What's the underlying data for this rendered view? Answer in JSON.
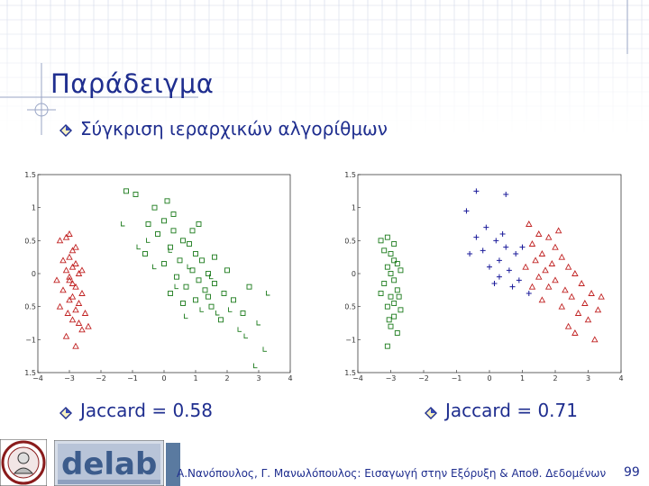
{
  "slide": {
    "title": "Παράδειγμα",
    "bullet1": "Σύγκριση ιεραρχικών αλγορίθμων",
    "jaccard_left": "Jaccard = 0.58",
    "jaccard_right": "Jaccard = 0.71",
    "footer": "Α.Νανόπουλος, Γ. Μανωλόπουλος: Εισαγωγή στην Εξόρυξη & Αποθ. Δεδομένων",
    "page_number": "99"
  },
  "colors": {
    "accent": "#1f2e8f",
    "red": "#c02020",
    "green": "#1a7a1a",
    "blue": "#1a1a9a",
    "grid": "#cfd6e6"
  },
  "logos": {
    "left": "university-seal-icon",
    "right": "delab-logo-icon"
  },
  "chart_data": [
    {
      "type": "scatter",
      "xlim": [
        -4,
        4
      ],
      "ylim": [
        -1.5,
        1.5
      ],
      "xticks": [
        "−4",
        "−3",
        "−2",
        "−1",
        "0",
        "1",
        "2",
        "3",
        "4"
      ],
      "yticks": [
        "1.5",
        "1",
        "0.5",
        "0",
        "−0.5",
        "−1",
        "−1.5"
      ],
      "series": [
        {
          "marker": "triangle",
          "color": "#c02020",
          "points": [
            [
              -3.3,
              0.5
            ],
            [
              -3.1,
              0.55
            ],
            [
              -3.0,
              0.6
            ],
            [
              -2.9,
              0.35
            ],
            [
              -3.2,
              0.2
            ],
            [
              -3.0,
              0.25
            ],
            [
              -2.8,
              0.15
            ],
            [
              -2.9,
              0.1
            ],
            [
              -3.1,
              0.05
            ],
            [
              -2.7,
              0.0
            ],
            [
              -3.0,
              -0.05
            ],
            [
              -2.9,
              -0.15
            ],
            [
              -2.8,
              -0.2
            ],
            [
              -3.2,
              -0.25
            ],
            [
              -2.6,
              -0.3
            ],
            [
              -2.9,
              -0.35
            ],
            [
              -3.0,
              -0.4
            ],
            [
              -2.7,
              -0.45
            ],
            [
              -2.8,
              -0.55
            ],
            [
              -2.5,
              -0.6
            ],
            [
              -2.9,
              -0.7
            ],
            [
              -2.7,
              -0.75
            ],
            [
              -2.6,
              -0.85
            ],
            [
              -3.1,
              -0.95
            ],
            [
              -2.8,
              -1.1
            ],
            [
              -3.0,
              -0.1
            ],
            [
              -3.4,
              -0.1
            ],
            [
              -2.4,
              -0.8
            ],
            [
              -2.8,
              0.4
            ],
            [
              -3.3,
              -0.5
            ],
            [
              -2.6,
              0.05
            ],
            [
              -3.05,
              -0.6
            ]
          ]
        },
        {
          "marker": "square",
          "color": "#1a7a1a",
          "points": [
            [
              -1.2,
              1.25
            ],
            [
              -0.9,
              1.2
            ],
            [
              -0.3,
              1.0
            ],
            [
              -0.5,
              0.75
            ],
            [
              0.0,
              0.8
            ],
            [
              -0.2,
              0.6
            ],
            [
              0.3,
              0.65
            ],
            [
              0.6,
              0.5
            ],
            [
              0.2,
              0.4
            ],
            [
              0.8,
              0.45
            ],
            [
              1.0,
              0.3
            ],
            [
              0.5,
              0.2
            ],
            [
              1.2,
              0.2
            ],
            [
              0.0,
              0.15
            ],
            [
              0.9,
              0.05
            ],
            [
              1.4,
              0.0
            ],
            [
              0.4,
              -0.05
            ],
            [
              1.1,
              -0.1
            ],
            [
              1.6,
              -0.15
            ],
            [
              0.7,
              -0.2
            ],
            [
              1.3,
              -0.25
            ],
            [
              1.9,
              -0.3
            ],
            [
              0.2,
              -0.3
            ],
            [
              1.0,
              -0.4
            ],
            [
              2.2,
              -0.4
            ],
            [
              1.5,
              -0.5
            ],
            [
              2.5,
              -0.6
            ],
            [
              0.6,
              -0.45
            ],
            [
              1.8,
              -0.7
            ],
            [
              0.9,
              0.65
            ],
            [
              1.6,
              0.25
            ],
            [
              1.1,
              0.75
            ],
            [
              0.1,
              1.1
            ],
            [
              2.0,
              0.05
            ],
            [
              1.4,
              -0.35
            ],
            [
              -0.6,
              0.3
            ],
            [
              0.3,
              0.9
            ],
            [
              2.7,
              -0.2
            ]
          ]
        },
        {
          "marker": "hook",
          "color": "#1a7a1a",
          "points": [
            [
              -1.3,
              0.75
            ],
            [
              -0.8,
              0.4
            ],
            [
              -0.5,
              0.5
            ],
            [
              0.2,
              0.35
            ],
            [
              0.8,
              0.1
            ],
            [
              1.5,
              -0.05
            ],
            [
              1.2,
              -0.55
            ],
            [
              0.7,
              -0.65
            ],
            [
              2.1,
              -0.55
            ],
            [
              2.6,
              -0.95
            ],
            [
              3.0,
              -0.75
            ],
            [
              3.3,
              -0.3
            ],
            [
              2.4,
              -0.85
            ],
            [
              1.7,
              -0.6
            ],
            [
              0.4,
              -0.2
            ],
            [
              -0.3,
              0.1
            ],
            [
              2.9,
              -1.4
            ],
            [
              3.2,
              -1.15
            ]
          ]
        }
      ]
    },
    {
      "type": "scatter",
      "xlim": [
        -4,
        4
      ],
      "ylim": [
        -1.5,
        1.5
      ],
      "xticks": [
        "−4",
        "−3",
        "−2",
        "−1",
        "0",
        "1",
        "2",
        "3",
        "4"
      ],
      "yticks": [
        "1.5",
        "1",
        "0.5",
        "0",
        "−0.5",
        "−1",
        "−1.5"
      ],
      "series": [
        {
          "marker": "square",
          "color": "#1a7a1a",
          "points": [
            [
              -3.3,
              0.5
            ],
            [
              -3.1,
              0.55
            ],
            [
              -3.0,
              0.3
            ],
            [
              -2.9,
              0.2
            ],
            [
              -3.1,
              0.1
            ],
            [
              -2.8,
              0.15
            ],
            [
              -3.0,
              0.0
            ],
            [
              -2.9,
              -0.1
            ],
            [
              -3.2,
              -0.15
            ],
            [
              -2.8,
              -0.25
            ],
            [
              -3.0,
              -0.35
            ],
            [
              -2.9,
              -0.45
            ],
            [
              -3.1,
              -0.5
            ],
            [
              -2.7,
              -0.55
            ],
            [
              -2.9,
              -0.65
            ],
            [
              -3.0,
              -0.8
            ],
            [
              -2.8,
              -0.9
            ],
            [
              -3.1,
              -1.1
            ],
            [
              -3.2,
              0.35
            ],
            [
              -2.7,
              0.05
            ],
            [
              -3.3,
              -0.3
            ],
            [
              -2.9,
              0.45
            ],
            [
              -3.05,
              -0.7
            ],
            [
              -2.75,
              -0.35
            ]
          ]
        },
        {
          "marker": "plus",
          "color": "#1a1a9a",
          "points": [
            [
              -0.4,
              1.25
            ],
            [
              0.5,
              1.2
            ],
            [
              -0.7,
              0.95
            ],
            [
              -0.1,
              0.7
            ],
            [
              -0.4,
              0.55
            ],
            [
              0.2,
              0.5
            ],
            [
              0.5,
              0.4
            ],
            [
              -0.2,
              0.35
            ],
            [
              0.3,
              0.2
            ],
            [
              0.8,
              0.3
            ],
            [
              0.0,
              0.1
            ],
            [
              0.6,
              0.05
            ],
            [
              0.9,
              -0.1
            ],
            [
              0.3,
              -0.05
            ],
            [
              1.0,
              0.4
            ],
            [
              0.7,
              -0.2
            ],
            [
              1.2,
              -0.3
            ],
            [
              -0.6,
              0.3
            ],
            [
              0.4,
              0.6
            ],
            [
              0.15,
              -0.15
            ]
          ]
        },
        {
          "marker": "triangle",
          "color": "#c02020",
          "points": [
            [
              1.2,
              0.75
            ],
            [
              1.5,
              0.6
            ],
            [
              1.8,
              0.55
            ],
            [
              1.3,
              0.45
            ],
            [
              2.0,
              0.4
            ],
            [
              1.6,
              0.3
            ],
            [
              2.2,
              0.25
            ],
            [
              1.4,
              0.2
            ],
            [
              1.9,
              0.15
            ],
            [
              2.4,
              0.1
            ],
            [
              1.7,
              0.05
            ],
            [
              2.6,
              0.0
            ],
            [
              1.5,
              -0.05
            ],
            [
              2.0,
              -0.1
            ],
            [
              2.8,
              -0.15
            ],
            [
              1.8,
              -0.2
            ],
            [
              2.3,
              -0.25
            ],
            [
              3.1,
              -0.3
            ],
            [
              2.5,
              -0.35
            ],
            [
              1.6,
              -0.4
            ],
            [
              2.9,
              -0.45
            ],
            [
              2.2,
              -0.5
            ],
            [
              3.3,
              -0.55
            ],
            [
              2.7,
              -0.6
            ],
            [
              3.0,
              -0.7
            ],
            [
              2.4,
              -0.8
            ],
            [
              3.4,
              -0.35
            ],
            [
              1.1,
              0.1
            ],
            [
              2.1,
              0.65
            ],
            [
              2.6,
              -0.9
            ],
            [
              3.2,
              -1.0
            ],
            [
              1.3,
              -0.2
            ]
          ]
        }
      ]
    }
  ]
}
